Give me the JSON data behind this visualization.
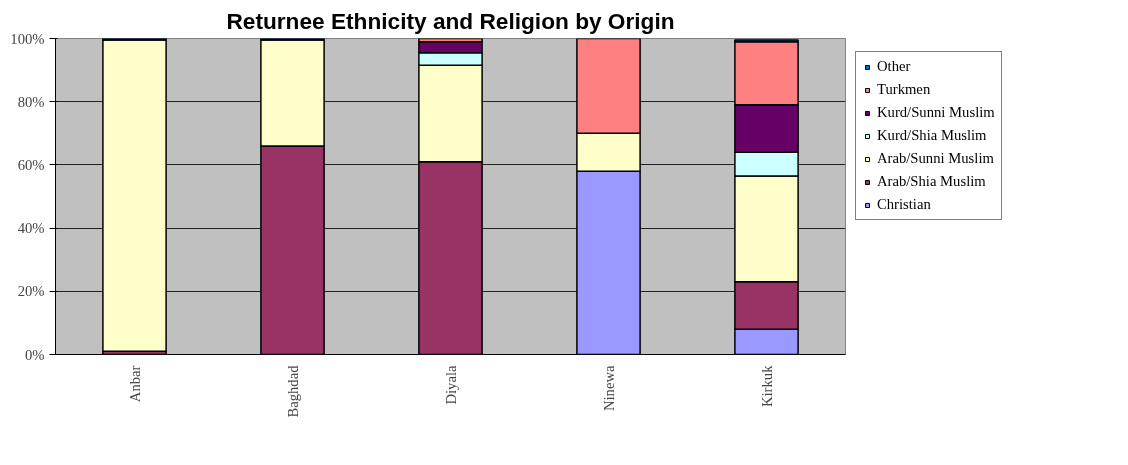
{
  "chart_data": {
    "type": "bar",
    "title": "Returnee Ethnicity and Religion by Origin",
    "stacked": true,
    "categories": [
      "Anbar",
      "Baghdad",
      "Diyala",
      "Ninewa",
      "Kirkuk"
    ],
    "series": [
      {
        "name": "Christian",
        "color": "#9999ff",
        "values": [
          0,
          0,
          0,
          58,
          8
        ]
      },
      {
        "name": "Arab/Shia Muslim",
        "color": "#993366",
        "values": [
          1,
          66,
          61,
          0,
          15
        ]
      },
      {
        "name": "Arab/Sunni Muslim",
        "color": "#ffffcc",
        "values": [
          98.5,
          33.5,
          30.5,
          12,
          33.5
        ]
      },
      {
        "name": "Kurd/Shia Muslim",
        "color": "#ccffff",
        "values": [
          0,
          0,
          4,
          0,
          7.5
        ]
      },
      {
        "name": "Kurd/Sunni Muslim",
        "color": "#660066",
        "values": [
          0,
          0,
          3.5,
          0,
          15
        ]
      },
      {
        "name": "Turkmen",
        "color": "#ff8080",
        "values": [
          0,
          0,
          1,
          30,
          20
        ]
      },
      {
        "name": "Other",
        "color": "#0066cc",
        "values": [
          0.5,
          0.5,
          0,
          0,
          0.5
        ]
      }
    ],
    "ylim": [
      0,
      100
    ],
    "yticks": [
      {
        "value": 0,
        "label": "0%"
      },
      {
        "value": 20,
        "label": "20%"
      },
      {
        "value": 40,
        "label": "40%"
      },
      {
        "value": 60,
        "label": "60%"
      },
      {
        "value": 80,
        "label": "80%"
      },
      {
        "value": 100,
        "label": "100%"
      }
    ],
    "grid": "y",
    "legend": "right"
  }
}
